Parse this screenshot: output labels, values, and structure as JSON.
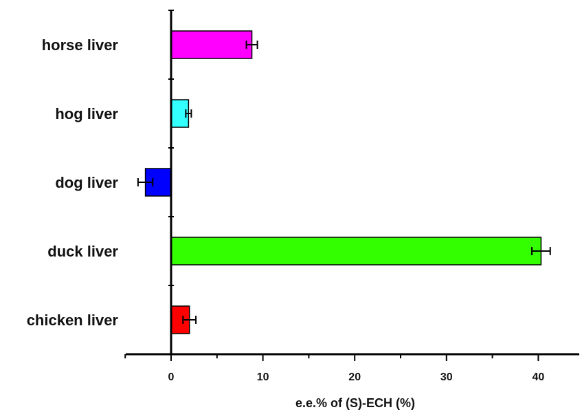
{
  "chart_data": {
    "type": "bar",
    "orientation": "horizontal",
    "categories": [
      "horse liver",
      "hog liver",
      "dog liver",
      "duck liver",
      "chicken liver"
    ],
    "values": [
      8.8,
      1.9,
      -2.8,
      40.3,
      2.0
    ],
    "errors": [
      0.6,
      0.3,
      0.8,
      1.0,
      0.7
    ],
    "colors": [
      "#ff00ff",
      "#33ffff",
      "#0000ff",
      "#33ff00",
      "#ff0000"
    ],
    "xlabel": "e.e.% of (S)-ECH (%)",
    "xlim": [
      -5,
      45
    ],
    "xticks": [
      0,
      10,
      20,
      30,
      40
    ],
    "xtick_labels": [
      "0",
      "10",
      "20",
      "30",
      "40"
    ],
    "grid": false
  }
}
